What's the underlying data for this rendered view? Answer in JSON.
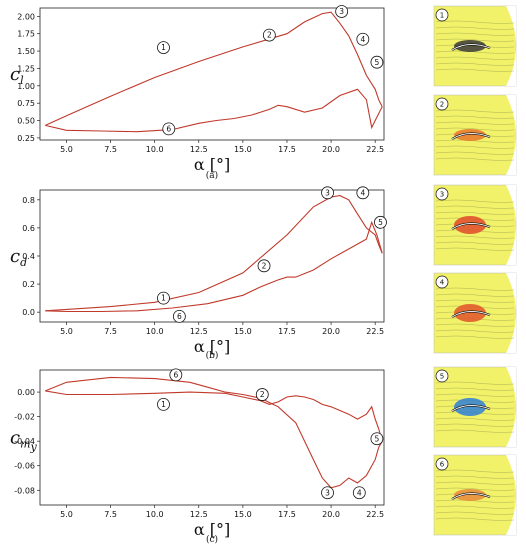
{
  "chart_data": [
    {
      "type": "line",
      "ylabel": "c",
      "ylabel_sub": "l",
      "xlabel": "α [°]",
      "caption": "(a)",
      "xlim": [
        3.5,
        23.0
      ],
      "ylim": [
        0.22,
        2.12
      ],
      "xticks": [
        "5.0",
        "7.5",
        "10.0",
        "12.5",
        "15.0",
        "17.5",
        "20.0",
        "22.5"
      ],
      "yticks": [
        "0.25",
        "0.50",
        "0.75",
        "1.00",
        "1.25",
        "1.50",
        "1.75",
        "2.00"
      ],
      "series": [
        {
          "x": [
            3.8,
            5.0,
            7.5,
            10.0,
            12.5,
            15.0,
            17.5,
            18.5,
            19.5,
            20.0,
            20.5,
            21.0,
            21.5,
            22.0,
            22.5,
            22.7,
            22.9
          ],
          "y": [
            0.43,
            0.57,
            0.85,
            1.12,
            1.35,
            1.56,
            1.75,
            1.92,
            2.04,
            2.06,
            1.9,
            1.72,
            1.45,
            1.15,
            0.95,
            0.8,
            0.7
          ]
        },
        {
          "x": [
            22.9,
            22.6,
            22.3,
            22.0,
            21.5,
            20.5,
            19.5,
            18.5,
            17.5,
            17.0,
            16.5,
            15.5,
            14.5,
            13.5,
            12.5,
            11.0,
            9.0,
            7.0,
            5.0,
            3.8
          ],
          "y": [
            0.7,
            0.55,
            0.4,
            0.8,
            0.95,
            0.86,
            0.68,
            0.62,
            0.7,
            0.72,
            0.66,
            0.58,
            0.53,
            0.5,
            0.46,
            0.37,
            0.34,
            0.35,
            0.36,
            0.43
          ]
        }
      ],
      "markers": [
        {
          "label": "1",
          "x": 10.5,
          "y": 1.55
        },
        {
          "label": "2",
          "x": 16.5,
          "y": 1.73
        },
        {
          "label": "3",
          "x": 20.6,
          "y": 2.07
        },
        {
          "label": "4",
          "x": 21.8,
          "y": 1.67
        },
        {
          "label": "5",
          "x": 22.6,
          "y": 1.34
        },
        {
          "label": "6",
          "x": 10.8,
          "y": 0.38
        }
      ]
    },
    {
      "type": "line",
      "ylabel": "c",
      "ylabel_sub": "d",
      "xlabel": "α [°]",
      "caption": "(b)",
      "xlim": [
        3.5,
        23.0
      ],
      "ylim": [
        -0.07,
        0.87
      ],
      "xticks": [
        "5.0",
        "7.5",
        "10.0",
        "12.5",
        "15.0",
        "17.5",
        "20.0",
        "22.5"
      ],
      "yticks": [
        "0.0",
        "0.2",
        "0.4",
        "0.6",
        "0.8"
      ],
      "series": [
        {
          "x": [
            3.8,
            5.0,
            7.5,
            10.0,
            12.5,
            15.0,
            17.5,
            19.0,
            20.0,
            20.5,
            21.0,
            21.5,
            22.0,
            22.5,
            22.7,
            22.9
          ],
          "y": [
            0.01,
            0.02,
            0.04,
            0.07,
            0.14,
            0.28,
            0.55,
            0.75,
            0.82,
            0.83,
            0.8,
            0.7,
            0.6,
            0.55,
            0.48,
            0.42
          ]
        },
        {
          "x": [
            22.9,
            22.6,
            22.3,
            22.0,
            21.0,
            20.0,
            19.0,
            18.0,
            17.5,
            17.0,
            16.0,
            15.0,
            13.0,
            11.0,
            9.0,
            7.0,
            5.0,
            3.8
          ],
          "y": [
            0.42,
            0.55,
            0.64,
            0.52,
            0.45,
            0.38,
            0.3,
            0.25,
            0.25,
            0.23,
            0.18,
            0.12,
            0.06,
            0.03,
            0.01,
            0.005,
            0.005,
            0.01
          ]
        }
      ],
      "markers": [
        {
          "label": "1",
          "x": 10.5,
          "y": 0.1
        },
        {
          "label": "2",
          "x": 16.2,
          "y": 0.33
        },
        {
          "label": "3",
          "x": 19.8,
          "y": 0.85
        },
        {
          "label": "4",
          "x": 21.8,
          "y": 0.85
        },
        {
          "label": "5",
          "x": 22.8,
          "y": 0.64
        },
        {
          "label": "6",
          "x": 11.4,
          "y": -0.03
        }
      ]
    },
    {
      "type": "line",
      "ylabel": "c",
      "ylabel_sub": "m_y",
      "xlabel": "α [°]",
      "caption": "(c)",
      "xlim": [
        3.5,
        23.0
      ],
      "ylim": [
        -0.092,
        0.018
      ],
      "xticks": [
        "5.0",
        "7.5",
        "10.0",
        "12.5",
        "15.0",
        "17.5",
        "20.0",
        "22.5"
      ],
      "yticks": [
        "0.00",
        "-0.02",
        "-0.04",
        "-0.06",
        "-0.08"
      ],
      "series": [
        {
          "x": [
            3.8,
            5.0,
            7.5,
            10.0,
            12.0,
            13.0,
            14.0,
            15.0,
            16.0,
            17.0,
            18.0,
            19.0,
            19.5,
            20.0,
            20.5,
            21.0,
            21.5,
            22.0,
            22.5,
            22.7,
            22.9
          ],
          "y": [
            0.001,
            0.008,
            0.012,
            0.011,
            0.008,
            0.004,
            0.0,
            -0.002,
            -0.005,
            -0.012,
            -0.025,
            -0.055,
            -0.07,
            -0.078,
            -0.076,
            -0.07,
            -0.074,
            -0.068,
            -0.055,
            -0.045,
            -0.04
          ]
        },
        {
          "x": [
            22.9,
            22.7,
            22.5,
            22.3,
            22.0,
            21.5,
            21.0,
            20.5,
            20.0,
            19.5,
            19.0,
            18.5,
            18.0,
            17.5,
            17.0,
            16.5,
            16.0,
            15.0,
            14.0,
            12.0,
            10.0,
            7.5,
            5.0,
            3.8
          ],
          "y": [
            -0.04,
            -0.03,
            -0.022,
            -0.012,
            -0.018,
            -0.022,
            -0.018,
            -0.015,
            -0.012,
            -0.01,
            -0.006,
            -0.004,
            -0.003,
            -0.004,
            -0.008,
            -0.01,
            -0.007,
            -0.004,
            -0.001,
            0.0,
            -0.001,
            -0.002,
            -0.002,
            0.001
          ]
        }
      ],
      "markers": [
        {
          "label": "1",
          "x": 10.5,
          "y": -0.01
        },
        {
          "label": "2",
          "x": 16.1,
          "y": -0.002
        },
        {
          "label": "3",
          "x": 19.8,
          "y": -0.082
        },
        {
          "label": "4",
          "x": 21.6,
          "y": -0.082
        },
        {
          "label": "5",
          "x": 22.6,
          "y": -0.038
        },
        {
          "label": "6",
          "x": 11.2,
          "y": 0.014
        }
      ]
    }
  ],
  "flow_panels": [
    {
      "label": "1",
      "accent": "#3a3a3a"
    },
    {
      "label": "2",
      "accent": "#e8762b"
    },
    {
      "label": "3",
      "accent": "#e24a2a"
    },
    {
      "label": "4",
      "accent": "#e2552a"
    },
    {
      "label": "5",
      "accent": "#2e7fd6"
    },
    {
      "label": "6",
      "accent": "#e88a3a"
    }
  ]
}
